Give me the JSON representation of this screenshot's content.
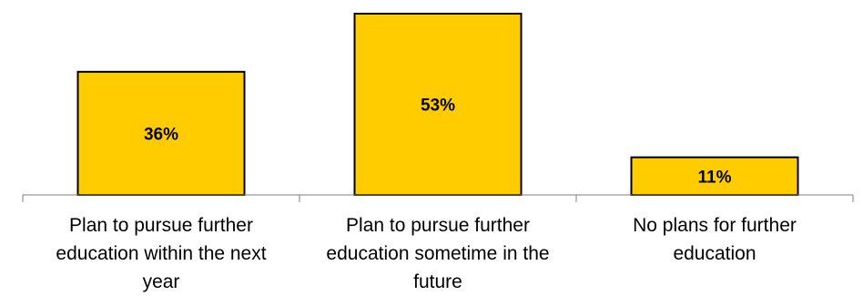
{
  "chart_data": {
    "type": "bar",
    "categories": [
      "Plan to pursue further education within the next year",
      "Plan to pursue further education sometime in the future",
      "No plans for further education"
    ],
    "category_label_lines": [
      [
        "Plan to pursue further",
        "education within the next",
        "year"
      ],
      [
        "Plan to pursue further",
        "education sometime in the",
        "future"
      ],
      [
        "No plans for further",
        "education"
      ]
    ],
    "values": [
      36,
      53,
      11
    ],
    "value_labels": [
      "36%",
      "53%",
      "11%"
    ],
    "ylim": [
      0,
      53
    ],
    "bar_color": "#FFCC00",
    "bar_edge_color": "#000000",
    "axis_color": "#808080",
    "text_color": "#000000",
    "title": "",
    "xlabel": "",
    "ylabel": "",
    "grid": false,
    "legend": false
  }
}
